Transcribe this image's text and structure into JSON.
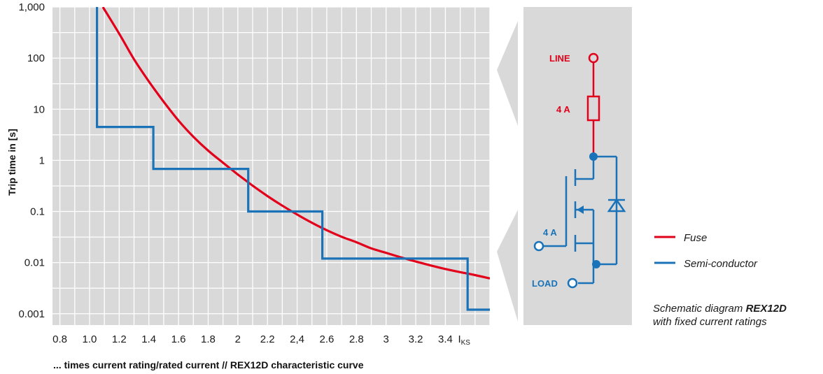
{
  "chart_data": {
    "type": "line",
    "title": "",
    "xlabel": "... times current rating/rated current // REX12D characteristic curve",
    "ylabel": "Trip time in [s]",
    "yscale": "log",
    "xlim": [
      0.75,
      3.7
    ],
    "ylim": [
      0.0006,
      1000
    ],
    "grid": true,
    "y_ticks": [
      {
        "value": 1000,
        "label": "1,000"
      },
      {
        "value": 100,
        "label": "100"
      },
      {
        "value": 10,
        "label": "10"
      },
      {
        "value": 1,
        "label": "1"
      },
      {
        "value": 0.1,
        "label": "0.1"
      },
      {
        "value": 0.01,
        "label": "0.01"
      },
      {
        "value": 0.001,
        "label": "0.001"
      }
    ],
    "x_ticks": [
      {
        "value": 0.8,
        "label": "0.8"
      },
      {
        "value": 1.0,
        "label": "1.0"
      },
      {
        "value": 1.2,
        "label": "1.2"
      },
      {
        "value": 1.4,
        "label": "1.4"
      },
      {
        "value": 1.6,
        "label": "1.6"
      },
      {
        "value": 1.8,
        "label": "1.8"
      },
      {
        "value": 2.0,
        "label": "2"
      },
      {
        "value": 2.2,
        "label": "2.2"
      },
      {
        "value": 2.4,
        "label": "2,4"
      },
      {
        "value": 2.6,
        "label": "2.6"
      },
      {
        "value": 2.8,
        "label": "2.8"
      },
      {
        "value": 3.0,
        "label": "3"
      },
      {
        "value": 3.2,
        "label": "3.2"
      },
      {
        "value": 3.4,
        "label": "3.4"
      }
    ],
    "x_end_label": "I",
    "x_end_label_sub": "KS",
    "series": [
      {
        "name": "Fuse",
        "color": "#e2001a",
        "x": [
          1.09,
          1.2,
          1.3,
          1.4,
          1.5,
          1.6,
          1.7,
          1.8,
          1.9,
          2.0,
          2.1,
          2.2,
          2.3,
          2.4,
          2.5,
          2.6,
          2.7,
          2.8,
          2.9,
          3.0,
          3.1,
          3.2,
          3.3,
          3.4,
          3.5,
          3.6,
          3.7
        ],
        "y": [
          1000,
          300,
          95,
          35,
          14,
          6,
          2.9,
          1.55,
          0.9,
          0.53,
          0.32,
          0.2,
          0.13,
          0.087,
          0.06,
          0.043,
          0.032,
          0.025,
          0.019,
          0.0155,
          0.0127,
          0.0105,
          0.0088,
          0.0075,
          0.0065,
          0.0057,
          0.0049
        ]
      },
      {
        "name": "Semi-conductor",
        "color": "#1a73b8",
        "step": true,
        "x": [
          1.05,
          1.05,
          1.43,
          1.43,
          2.07,
          2.07,
          2.57,
          2.57,
          3.55,
          3.55,
          3.7
        ],
        "y": [
          1000,
          4.5,
          4.5,
          0.68,
          0.68,
          0.1,
          0.1,
          0.012,
          0.012,
          0.0012,
          0.0012
        ]
      }
    ],
    "legend": {
      "position": "right"
    }
  },
  "schematic": {
    "line_label": "LINE",
    "fuse_rating": "4 A",
    "semi_rating": "4 A",
    "load_label": "LOAD"
  },
  "caption": {
    "prefix": "Schematic diagram ",
    "product": "REX12D",
    "line2": "with fixed current ratings"
  },
  "colors": {
    "fuse": "#e2001a",
    "semi": "#1a73b8",
    "plot_bg": "#d9d9d9",
    "grid": "#ffffff"
  }
}
